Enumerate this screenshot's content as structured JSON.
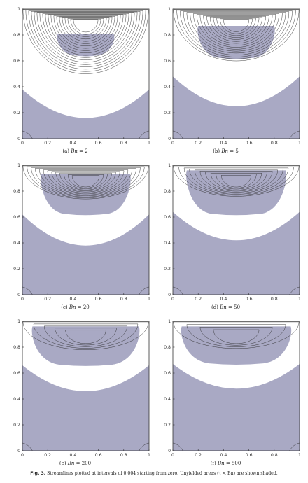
{
  "figure": {
    "caption_label": "Fig. 3.",
    "caption_text": "Streamlines plotted at intervals of 0.004 starting from zero. Unyielded areas (τ < Bn) are shown shaded.",
    "colors": {
      "unyielded_fill": "#a9a9c4",
      "streamline": "#2a2a2a",
      "axis": "#333333"
    }
  },
  "axes": {
    "x_ticks": [
      "0",
      "0.2",
      "0.4",
      "0.6",
      "0.8",
      "1"
    ],
    "y_ticks": [
      "0",
      "0.2",
      "0.4",
      "0.6",
      "0.8",
      "1"
    ]
  },
  "panels": [
    {
      "caption_prefix": "(a)",
      "caption_var": "Bn",
      "caption_eq": " = 2",
      "bn": 2,
      "plug_top": 0.81,
      "plug_bottom": 0.64,
      "plug_halfwidth": 0.22,
      "dead_top": 0.38,
      "dead_center": 0.16,
      "n_stream": 19
    },
    {
      "caption_prefix": "(b)",
      "caption_var": "Bn",
      "caption_eq": " = 5",
      "bn": 5,
      "plug_top": 0.87,
      "plug_bottom": 0.62,
      "plug_halfwidth": 0.3,
      "dead_top": 0.48,
      "dead_center": 0.25,
      "n_stream": 16
    },
    {
      "caption_prefix": "(c)",
      "caption_var": "Bn",
      "caption_eq": " = 20",
      "bn": 20,
      "plug_top": 0.93,
      "plug_bottom": 0.62,
      "plug_halfwidth": 0.35,
      "dead_top": 0.62,
      "dead_center": 0.38,
      "n_stream": 13
    },
    {
      "caption_prefix": "(d)",
      "caption_var": "Bn",
      "caption_eq": " = 50",
      "bn": 50,
      "plug_top": 0.96,
      "plug_bottom": 0.62,
      "plug_halfwidth": 0.39,
      "dead_top": 0.64,
      "dead_center": 0.42,
      "n_stream": 10
    },
    {
      "caption_prefix": "(e)",
      "caption_var": "Bn",
      "caption_eq": " = 200",
      "bn": 200,
      "plug_top": 0.96,
      "plug_bottom": 0.66,
      "plug_halfwidth": 0.42,
      "dead_top": 0.66,
      "dead_center": 0.46,
      "n_stream": 5
    },
    {
      "caption_prefix": "(f)",
      "caption_var": "Bn",
      "caption_eq": " = 500",
      "bn": 500,
      "plug_top": 0.96,
      "plug_bottom": 0.67,
      "plug_halfwidth": 0.43,
      "dead_top": 0.67,
      "dead_center": 0.48,
      "n_stream": 4
    }
  ]
}
